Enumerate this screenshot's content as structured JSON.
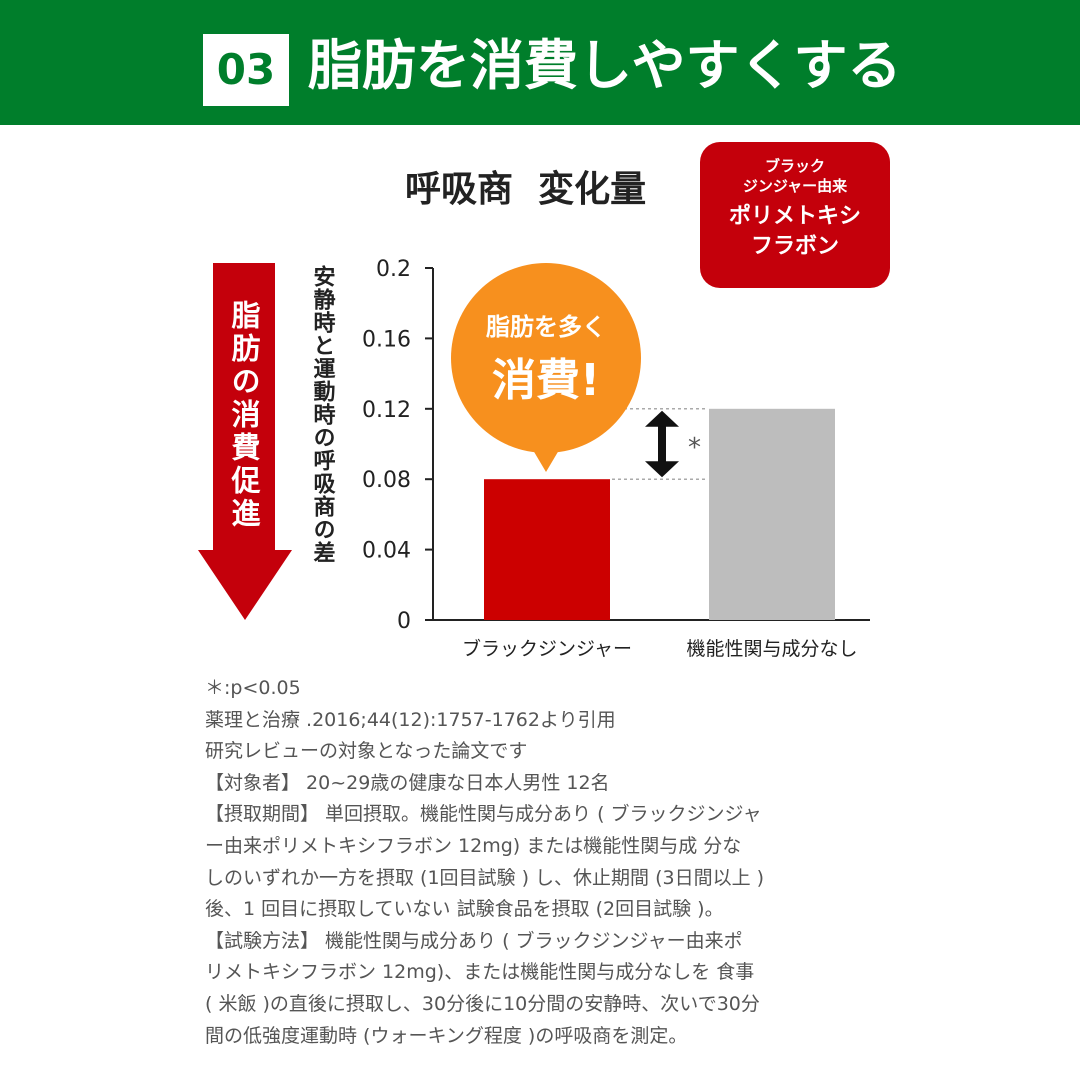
{
  "header": {
    "number": "03",
    "title": "脂肪を消費しやすくする",
    "color": "#007e2b"
  },
  "badge": {
    "lines_small": [
      "ブラック",
      "ジンジャー由来"
    ],
    "lines_large": [
      "ポリメトキシ",
      "フラボン"
    ],
    "color": "#c4000b"
  },
  "side_arrow": {
    "label": "脂肪の消費促進",
    "color": "#c4000b"
  },
  "callout": {
    "line1": "脂肪を多く",
    "line2": "消費!",
    "color": "#f7901e"
  },
  "chart_data": {
    "type": "bar",
    "title": "呼吸商  変化量",
    "ylabel": "安静時と運動時の呼吸商の差",
    "xlabel": "",
    "categories": [
      "ブラックジンジャー",
      "機能性関与成分なし"
    ],
    "values": [
      0.08,
      0.12
    ],
    "colors": [
      "#cc0000",
      "#bdbdbd"
    ],
    "ylim": [
      0,
      0.2
    ],
    "yticks": [
      "0",
      "0.04",
      "0.08",
      "0.12",
      "0.16",
      "0.2"
    ],
    "significance": "*",
    "grid": false
  },
  "footnotes": [
    "＊:p<0.05",
    "薬理と治療 .2016;44(12):1757-1762より引用",
    "研究レビューの対象となった論文です",
    "【対象者】  20~29歳の健康な日本人男性 12名",
    "【摂取期間】  単回摂取。機能性関与成分あり ( ブラックジンジャ",
    "ー由来ポリメトキシフラボン 12mg) または機能性関与成 分な",
    "しのいずれか一方を摂取 (1回目試験 ) し、休止期間 (3日間以上 )",
    "後、1 回目に摂取していない 試験食品を摂取 (2回目試験 )。",
    "【試験方法】  機能性関与成分あり ( ブラックジンジャー由来ポ",
    "リメトキシフラボン 12mg)、または機能性関与成分なしを 食事",
    "( 米飯 )の直後に摂取し、30分後に10分間の安静時、次いで30分",
    "間の低強度運動時 (ウォーキング程度 )の呼吸商を測定。"
  ]
}
